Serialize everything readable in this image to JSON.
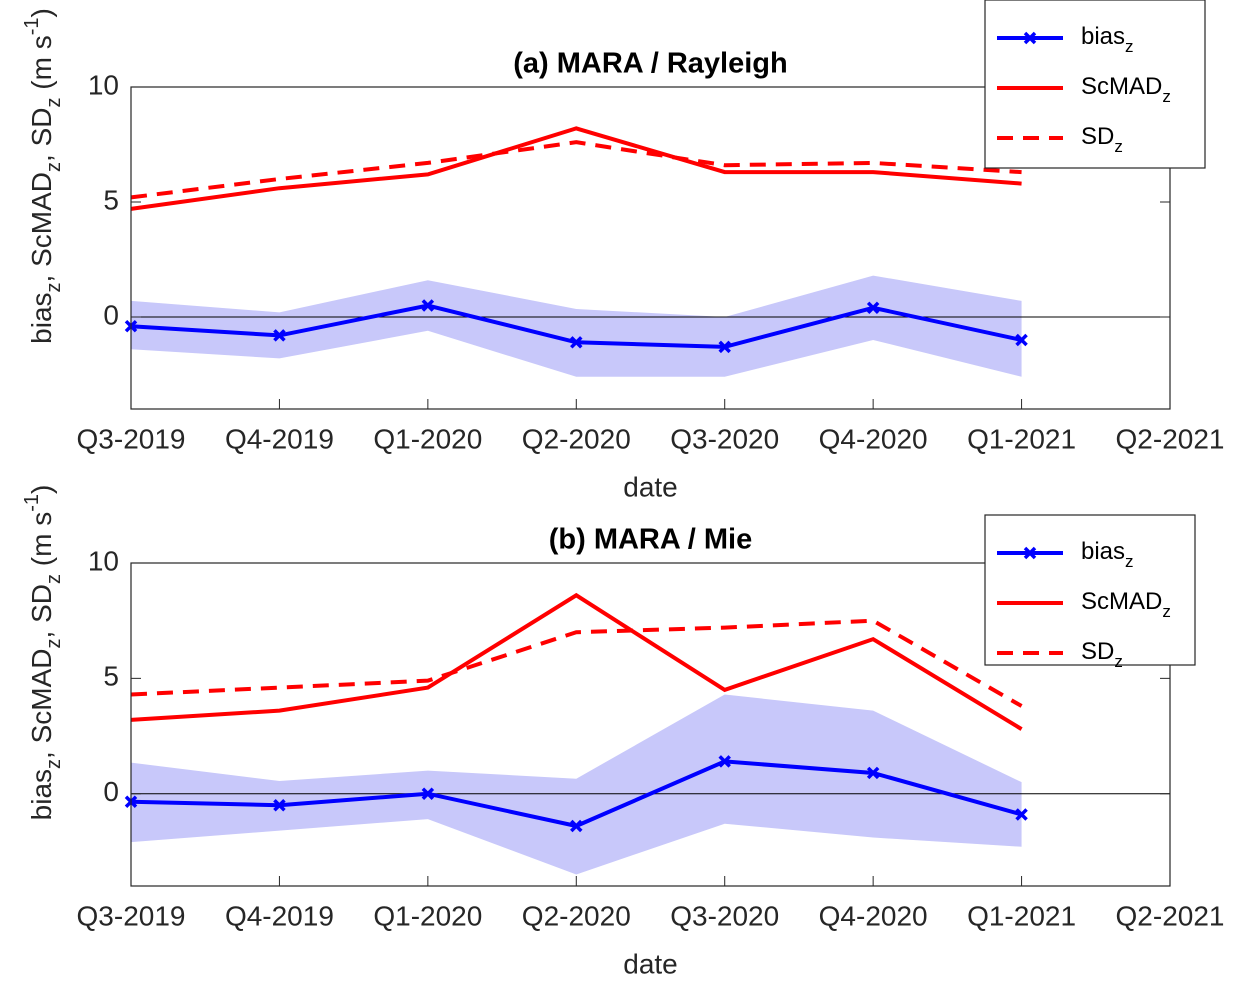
{
  "chart_data": [
    {
      "type": "line",
      "title": "(a) MARA / Rayleigh",
      "xlabel": "date",
      "ylabel": [
        {
          "text": "bias"
        },
        {
          "text": "z",
          "sub": true
        },
        {
          "text": ", ScMAD"
        },
        {
          "text": "z",
          "sub": true
        },
        {
          "text": ", SD"
        },
        {
          "text": "z",
          "sub": true
        },
        {
          "text": " (m s"
        },
        {
          "text": "-1",
          "sup": true
        },
        {
          "text": ")"
        }
      ],
      "categories": [
        "Q3-2019",
        "Q4-2019",
        "Q1-2020",
        "Q2-2020",
        "Q3-2020",
        "Q4-2020",
        "Q1-2021",
        "Q2-2021"
      ],
      "ylim": [
        -4,
        10
      ],
      "yticks": [
        0,
        5,
        10
      ],
      "refline": 0,
      "band": {
        "color": "#c8c8fa",
        "upper": [
          0.7,
          0.2,
          1.6,
          0.35,
          0.0,
          1.8,
          0.7,
          null
        ],
        "lower": [
          -1.4,
          -1.8,
          -0.6,
          -2.6,
          -2.6,
          -1.0,
          -2.6,
          null
        ]
      },
      "series": [
        {
          "name": "bias",
          "name_sub": "z",
          "color": "#0000ff",
          "dash": false,
          "marker": "x",
          "values": [
            -0.4,
            -0.8,
            0.5,
            -1.1,
            -1.3,
            0.4,
            -1.0,
            null
          ]
        },
        {
          "name": "ScMAD",
          "name_sub": "z",
          "color": "#ff0000",
          "dash": false,
          "marker": null,
          "values": [
            4.7,
            5.6,
            6.2,
            8.2,
            6.3,
            6.3,
            5.8,
            null
          ]
        },
        {
          "name": "SD",
          "name_sub": "z",
          "color": "#ff0000",
          "dash": true,
          "marker": null,
          "values": [
            5.2,
            6.0,
            6.7,
            7.6,
            6.6,
            6.7,
            6.3,
            null
          ]
        }
      ]
    },
    {
      "type": "line",
      "title": "(b) MARA / Mie",
      "xlabel": "date",
      "ylabel": [
        {
          "text": "bias"
        },
        {
          "text": "z",
          "sub": true
        },
        {
          "text": ", ScMAD"
        },
        {
          "text": "z",
          "sub": true
        },
        {
          "text": ", SD"
        },
        {
          "text": "z",
          "sub": true
        },
        {
          "text": " (m s"
        },
        {
          "text": "-1",
          "sup": true
        },
        {
          "text": ")"
        }
      ],
      "categories": [
        "Q3-2019",
        "Q4-2019",
        "Q1-2020",
        "Q2-2020",
        "Q3-2020",
        "Q4-2020",
        "Q1-2021",
        "Q2-2021"
      ],
      "ylim": [
        -4,
        10
      ],
      "yticks": [
        0,
        5,
        10
      ],
      "refline": 0,
      "band": {
        "color": "#c8c8fa",
        "upper": [
          1.35,
          0.55,
          1.0,
          0.65,
          4.3,
          3.6,
          0.5,
          null
        ],
        "lower": [
          -2.1,
          -1.6,
          -1.1,
          -3.5,
          -1.3,
          -1.9,
          -2.3,
          null
        ]
      },
      "series": [
        {
          "name": "bias",
          "name_sub": "z",
          "color": "#0000ff",
          "dash": false,
          "marker": "x",
          "values": [
            -0.35,
            -0.5,
            0.0,
            -1.4,
            1.4,
            0.9,
            -0.9,
            null
          ]
        },
        {
          "name": "ScMAD",
          "name_sub": "z",
          "color": "#ff0000",
          "dash": false,
          "marker": null,
          "values": [
            3.2,
            3.6,
            4.6,
            8.6,
            4.5,
            6.7,
            2.8,
            null
          ]
        },
        {
          "name": "SD",
          "name_sub": "z",
          "color": "#ff0000",
          "dash": true,
          "marker": null,
          "values": [
            4.3,
            4.6,
            4.9,
            7.0,
            7.2,
            7.5,
            3.8,
            null
          ]
        }
      ]
    }
  ]
}
